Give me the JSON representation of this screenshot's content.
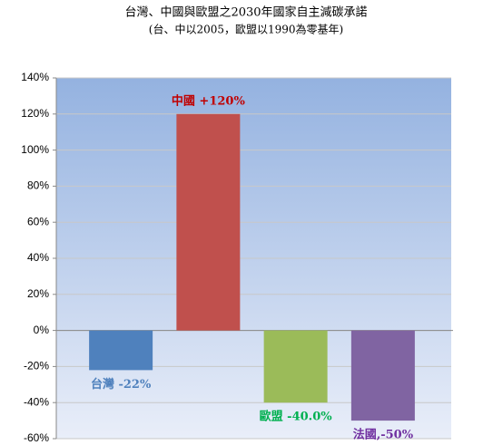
{
  "chart_data": {
    "type": "bar",
    "title": "台灣、中國與歐盟之2030年國家自主減碳承諾",
    "subtitle": "(台、中以2005，歐盟以1990為零基年)",
    "categories": [
      null,
      null,
      null,
      null
    ],
    "values": [
      -22,
      120,
      -40,
      -50
    ],
    "value_labels": [
      "台灣 -22%",
      "中國 +120%",
      "歐盟 -40.0%",
      "法國,-50%"
    ],
    "colors": [
      "#4f81bd",
      "#c0504d",
      "#9bbb59",
      "#8064a2"
    ],
    "label_colors": [
      "#4f81bd",
      "#c00000",
      "#00b050",
      "#7030a0"
    ],
    "ylim": [
      -60,
      140
    ],
    "yticks": [
      {
        "value": -60,
        "label": "-60%"
      },
      {
        "value": -40,
        "label": "-40%"
      },
      {
        "value": -20,
        "label": "-20%"
      },
      {
        "value": 0,
        "label": "0%"
      },
      {
        "value": 20,
        "label": "20%"
      },
      {
        "value": 40,
        "label": "40%"
      },
      {
        "value": 60,
        "label": "60%"
      },
      {
        "value": 80,
        "label": "80%"
      },
      {
        "value": 100,
        "label": "100%"
      },
      {
        "value": 120,
        "label": "120%"
      },
      {
        "value": 140,
        "label": "140%"
      }
    ],
    "grid": true
  }
}
